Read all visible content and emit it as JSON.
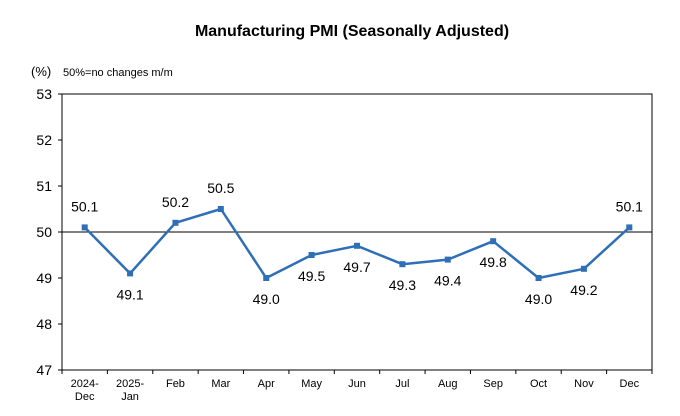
{
  "chart_data": {
    "type": "line",
    "title": "Manufacturing PMI (Seasonally Adjusted)",
    "unit_label": "(%)",
    "note": "50%=no changes m/m",
    "ylim": [
      47,
      53
    ],
    "yticks": [
      "47",
      "48",
      "49",
      "50",
      "51",
      "52",
      "53"
    ],
    "reference_line": 50,
    "categories": [
      [
        "2024-",
        "Dec"
      ],
      [
        "2025-",
        "Jan"
      ],
      [
        "Feb"
      ],
      [
        "Mar"
      ],
      [
        "Apr"
      ],
      [
        "May"
      ],
      [
        "Jun"
      ],
      [
        "Jul"
      ],
      [
        "Aug"
      ],
      [
        "Sep"
      ],
      [
        "Oct"
      ],
      [
        "Nov"
      ],
      [
        "Dec"
      ]
    ],
    "series": [
      {
        "values": [
          50.1,
          49.1,
          50.2,
          50.5,
          49.0,
          49.5,
          49.7,
          49.3,
          49.4,
          49.8,
          49.0,
          49.2,
          50.1
        ],
        "labels": [
          "50.1",
          "49.1",
          "50.2",
          "50.5",
          "49.0",
          "49.5",
          "49.7",
          "49.3",
          "49.4",
          "49.8",
          "49.0",
          "49.2",
          "50.1"
        ],
        "label_pos": [
          "above",
          "below",
          "above",
          "above",
          "below",
          "below",
          "below",
          "below",
          "below",
          "below",
          "below",
          "below",
          "above"
        ],
        "color": "#2e6fb7"
      }
    ],
    "grid": false,
    "legend": "none"
  }
}
